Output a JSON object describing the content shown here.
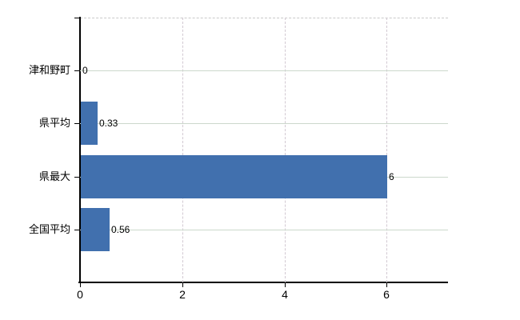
{
  "chart_data": {
    "type": "bar",
    "orientation": "horizontal",
    "title": "",
    "xlabel": "",
    "ylabel": "",
    "categories": [
      "津和野町",
      "県平均",
      "県最大",
      "全国平均"
    ],
    "values": [
      0,
      0.33,
      6,
      0.56
    ],
    "value_labels": [
      "0",
      "0.33",
      "6",
      "0.56"
    ],
    "x_tick_labels": [
      "0",
      "2",
      "4",
      "6"
    ],
    "x_tick_values": [
      0,
      2,
      4,
      6
    ],
    "xlim": [
      0,
      7.2
    ],
    "grid": "on",
    "legend": "none",
    "colors": {
      "bar": "#4170ae",
      "horizontal_gridline": "#ccd8cc",
      "vertical_gridline": "#d2c9d2",
      "axis": "#000000",
      "text": "#000000"
    }
  }
}
